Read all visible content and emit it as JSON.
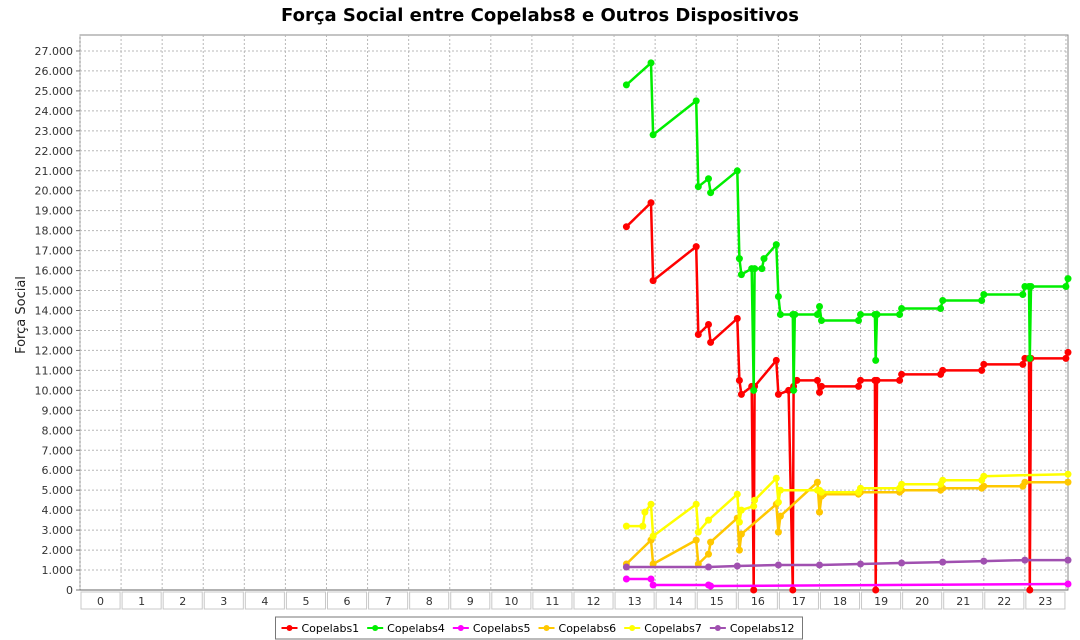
{
  "chart_data": {
    "type": "line",
    "title": "Força Social entre Copelabs8 e Outros Dispositivos",
    "xlabel": "",
    "ylabel": "Força Social",
    "categories": [
      "0",
      "1",
      "2",
      "3",
      "4",
      "5",
      "6",
      "7",
      "8",
      "9",
      "10",
      "11",
      "12",
      "13",
      "14",
      "15",
      "16",
      "17",
      "18",
      "19",
      "20",
      "21",
      "22",
      "23"
    ],
    "y_ticks": [
      "0",
      "1.000",
      "2.000",
      "3.000",
      "4.000",
      "5.000",
      "6.000",
      "7.000",
      "8.000",
      "9.000",
      "10.000",
      "11.000",
      "12.000",
      "13.000",
      "14.000",
      "15.000",
      "16.000",
      "17.000",
      "18.000",
      "19.000",
      "20.000",
      "21.000",
      "22.000",
      "23.000",
      "24.000",
      "25.000",
      "26.000",
      "27.000"
    ],
    "ylim": [
      0,
      27800
    ],
    "xlim": [
      -0.5,
      23.55
    ],
    "grid": true,
    "legend_position": "bottom",
    "series": [
      {
        "name": "Copelabs1",
        "color": "#ff0000",
        "points": [
          [
            12.8,
            18200
          ],
          [
            13.4,
            19400
          ],
          [
            13.45,
            15500
          ],
          [
            14.5,
            17200
          ],
          [
            14.55,
            12800
          ],
          [
            14.8,
            13300
          ],
          [
            14.85,
            12400
          ],
          [
            15.5,
            13600
          ],
          [
            15.55,
            10500
          ],
          [
            15.6,
            9800
          ],
          [
            15.85,
            10200
          ],
          [
            15.9,
            0
          ],
          [
            15.92,
            10200
          ],
          [
            16.45,
            11500
          ],
          [
            16.5,
            9800
          ],
          [
            16.75,
            10000
          ],
          [
            16.85,
            0
          ],
          [
            16.87,
            10200
          ],
          [
            16.95,
            10500
          ],
          [
            17.45,
            10500
          ],
          [
            17.5,
            9900
          ],
          [
            17.55,
            10200
          ],
          [
            18.45,
            10200
          ],
          [
            18.5,
            10500
          ],
          [
            18.85,
            10500
          ],
          [
            18.87,
            0
          ],
          [
            18.9,
            10500
          ],
          [
            19.45,
            10500
          ],
          [
            19.5,
            10800
          ],
          [
            20.45,
            10800
          ],
          [
            20.5,
            11000
          ],
          [
            21.45,
            11000
          ],
          [
            21.5,
            11300
          ],
          [
            22.45,
            11300
          ],
          [
            22.5,
            11600
          ],
          [
            22.6,
            11600
          ],
          [
            22.62,
            0
          ],
          [
            22.65,
            11600
          ],
          [
            23.5,
            11600
          ],
          [
            23.55,
            11900
          ]
        ]
      },
      {
        "name": "Copelabs4",
        "color": "#00ee00",
        "points": [
          [
            12.8,
            25300
          ],
          [
            13.4,
            26400
          ],
          [
            13.45,
            22800
          ],
          [
            14.5,
            24500
          ],
          [
            14.55,
            20200
          ],
          [
            14.8,
            20600
          ],
          [
            14.85,
            19900
          ],
          [
            15.5,
            21000
          ],
          [
            15.55,
            16600
          ],
          [
            15.6,
            15800
          ],
          [
            15.85,
            16100
          ],
          [
            15.9,
            10000
          ],
          [
            15.92,
            16100
          ],
          [
            16.1,
            16100
          ],
          [
            16.15,
            16600
          ],
          [
            16.45,
            17300
          ],
          [
            16.5,
            14700
          ],
          [
            16.55,
            13800
          ],
          [
            16.85,
            13800
          ],
          [
            16.87,
            10000
          ],
          [
            16.9,
            13800
          ],
          [
            17.45,
            13800
          ],
          [
            17.5,
            14200
          ],
          [
            17.55,
            13500
          ],
          [
            18.45,
            13500
          ],
          [
            18.5,
            13800
          ],
          [
            18.85,
            13800
          ],
          [
            18.87,
            11500
          ],
          [
            18.9,
            13800
          ],
          [
            19.45,
            13800
          ],
          [
            19.5,
            14100
          ],
          [
            20.45,
            14100
          ],
          [
            20.5,
            14500
          ],
          [
            21.45,
            14500
          ],
          [
            21.5,
            14800
          ],
          [
            22.45,
            14800
          ],
          [
            22.5,
            15200
          ],
          [
            22.6,
            15200
          ],
          [
            22.62,
            11600
          ],
          [
            22.65,
            15200
          ],
          [
            23.5,
            15200
          ],
          [
            23.55,
            15600
          ]
        ]
      },
      {
        "name": "Copelabs5",
        "color": "#ff00ff",
        "points": [
          [
            12.8,
            550
          ],
          [
            13.4,
            550
          ],
          [
            13.45,
            250
          ],
          [
            14.8,
            250
          ],
          [
            14.85,
            200
          ],
          [
            23.55,
            300
          ]
        ]
      },
      {
        "name": "Copelabs6",
        "color": "#ffc800",
        "points": [
          [
            12.8,
            1300
          ],
          [
            13.4,
            2500
          ],
          [
            13.45,
            1300
          ],
          [
            14.5,
            2500
          ],
          [
            14.55,
            1300
          ],
          [
            14.8,
            1800
          ],
          [
            14.85,
            2400
          ],
          [
            15.5,
            3600
          ],
          [
            15.55,
            2000
          ],
          [
            15.6,
            2800
          ],
          [
            16.45,
            4300
          ],
          [
            16.5,
            2900
          ],
          [
            16.55,
            3700
          ],
          [
            17.45,
            5400
          ],
          [
            17.5,
            3900
          ],
          [
            17.55,
            4700
          ],
          [
            17.6,
            4800
          ],
          [
            18.45,
            4800
          ],
          [
            18.5,
            4900
          ],
          [
            19.45,
            4900
          ],
          [
            19.5,
            5000
          ],
          [
            20.45,
            5000
          ],
          [
            20.5,
            5100
          ],
          [
            21.45,
            5100
          ],
          [
            21.5,
            5200
          ],
          [
            22.45,
            5200
          ],
          [
            22.5,
            5400
          ],
          [
            23.55,
            5400
          ]
        ]
      },
      {
        "name": "Copelabs7",
        "color": "#ffff00",
        "points": [
          [
            12.8,
            3200
          ],
          [
            13.2,
            3200
          ],
          [
            13.25,
            3900
          ],
          [
            13.4,
            4300
          ],
          [
            13.45,
            2700
          ],
          [
            14.5,
            4300
          ],
          [
            14.55,
            2900
          ],
          [
            14.8,
            3500
          ],
          [
            15.5,
            4800
          ],
          [
            15.55,
            3400
          ],
          [
            15.6,
            4000
          ],
          [
            15.9,
            4200
          ],
          [
            15.92,
            4500
          ],
          [
            16.45,
            5600
          ],
          [
            16.5,
            4400
          ],
          [
            16.55,
            5000
          ],
          [
            17.45,
            5000
          ],
          [
            17.5,
            5000
          ],
          [
            17.55,
            4900
          ],
          [
            18.45,
            4900
          ],
          [
            18.5,
            5100
          ],
          [
            19.45,
            5100
          ],
          [
            19.5,
            5300
          ],
          [
            20.45,
            5300
          ],
          [
            20.5,
            5500
          ],
          [
            21.45,
            5500
          ],
          [
            21.5,
            5700
          ],
          [
            23.55,
            5800
          ]
        ]
      },
      {
        "name": "Copelabs12",
        "color": "#a050b0",
        "points": [
          [
            12.8,
            1150
          ],
          [
            14.8,
            1150
          ],
          [
            15.5,
            1200
          ],
          [
            16.5,
            1250
          ],
          [
            17.5,
            1250
          ],
          [
            18.5,
            1300
          ],
          [
            19.5,
            1350
          ],
          [
            20.5,
            1400
          ],
          [
            21.5,
            1450
          ],
          [
            22.5,
            1500
          ],
          [
            23.55,
            1500
          ]
        ]
      }
    ]
  }
}
